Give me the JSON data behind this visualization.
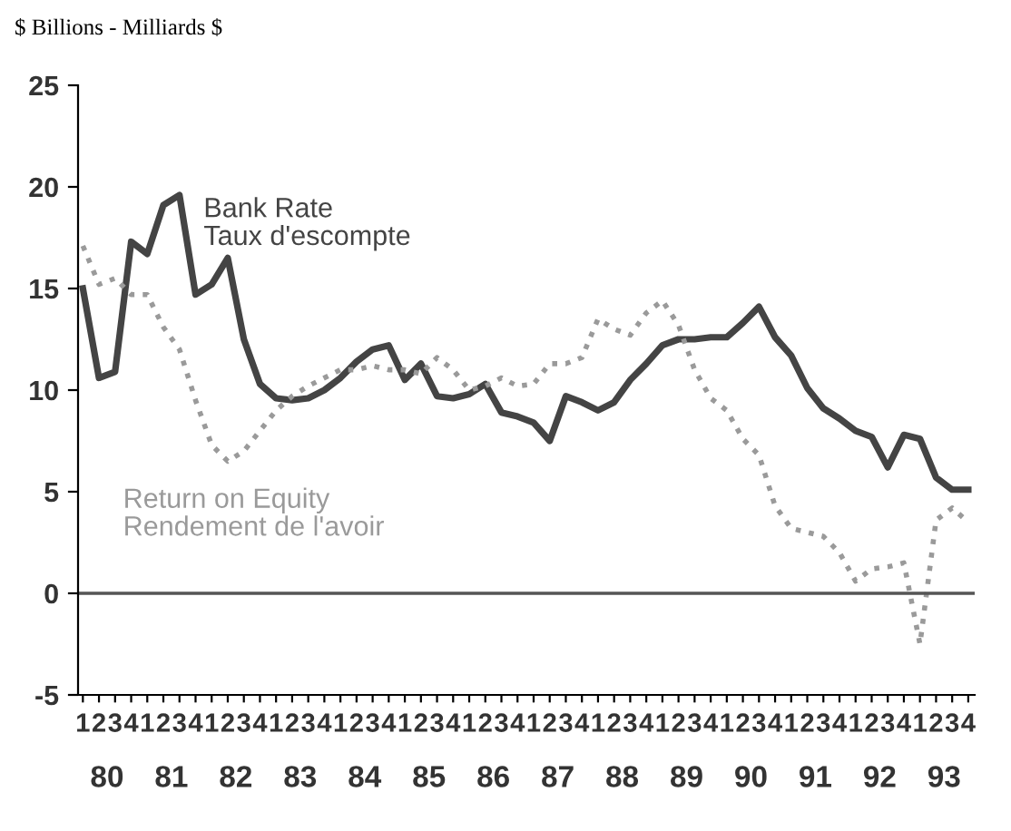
{
  "chart_data": {
    "type": "line",
    "title": "$ Billions - Milliards $",
    "categories": [
      "1",
      "2",
      "3",
      "4",
      "1",
      "2",
      "3",
      "4",
      "1",
      "2",
      "3",
      "4",
      "1",
      "2",
      "3",
      "4",
      "1",
      "2",
      "3",
      "4",
      "1",
      "2",
      "3",
      "4",
      "1",
      "2",
      "3",
      "4",
      "1",
      "2",
      "3",
      "4",
      "1",
      "2",
      "3",
      "4",
      "1",
      "2",
      "3",
      "4",
      "1",
      "2",
      "3",
      "4",
      "1",
      "2",
      "3",
      "4",
      "1",
      "2",
      "3",
      "4",
      "1",
      "2",
      "3",
      "4"
    ],
    "series": [
      {
        "name": "Bank Rate\nTaux d'escompte",
        "color": "#444444",
        "line_style": "solid",
        "values": [
          15.0,
          10.6,
          10.9,
          17.3,
          16.7,
          19.1,
          19.6,
          14.7,
          15.2,
          16.5,
          12.5,
          10.3,
          9.6,
          9.5,
          9.6,
          10.0,
          10.6,
          11.4,
          12.0,
          12.2,
          10.5,
          11.3,
          9.7,
          9.6,
          9.8,
          10.3,
          8.9,
          8.7,
          8.4,
          7.5,
          9.7,
          9.4,
          9.0,
          9.4,
          10.5,
          11.3,
          12.2,
          12.5,
          12.5,
          12.6,
          12.6,
          13.3,
          14.1,
          12.6,
          11.7,
          10.1,
          9.1,
          8.6,
          8.0,
          7.7,
          6.2,
          7.8,
          7.6,
          5.7,
          5.1,
          5.1
        ]
      },
      {
        "name": "Return on Equity\nRendement de l'avoir",
        "color": "#9a9a9a",
        "line_style": "dotted",
        "values": [
          17.1,
          15.2,
          15.5,
          14.7,
          14.7,
          13.1,
          12.0,
          9.5,
          7.3,
          6.5,
          7.0,
          8.0,
          9.0,
          9.7,
          10.2,
          10.6,
          11.0,
          11.0,
          11.2,
          11.0,
          11.0,
          10.8,
          11.6,
          11.0,
          10.0,
          10.2,
          10.6,
          10.2,
          10.3,
          11.3,
          11.3,
          11.6,
          13.5,
          13.0,
          12.7,
          13.8,
          14.4,
          13.2,
          11.0,
          9.6,
          9.0,
          7.6,
          6.8,
          4.3,
          3.2,
          3.0,
          2.8,
          2.0,
          0.6,
          1.2,
          1.3,
          1.5,
          -2.5,
          3.6,
          4.2,
          3.5
        ]
      }
    ],
    "annotations": [
      "80",
      "81",
      "82",
      "83",
      "84",
      "85",
      "86",
      "87",
      "88",
      "89",
      "90",
      "91",
      "92",
      "93"
    ],
    "ylim": [
      -5,
      25
    ],
    "yticks": [
      -5,
      0,
      5,
      10,
      15,
      20,
      25
    ],
    "ref_lines": [
      {
        "axis": "y",
        "value": 0,
        "color": "#555555"
      }
    ],
    "grid": false,
    "legend": false
  }
}
